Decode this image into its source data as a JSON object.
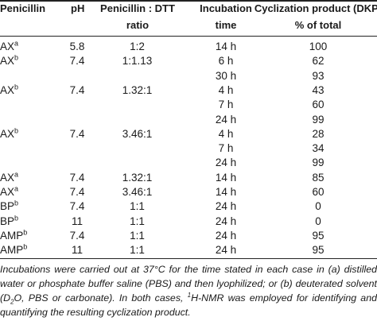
{
  "headers": {
    "penicillin": "Penicillin",
    "ph": "pH",
    "ratio_l1": "Penicillin : DTT",
    "ratio_l2": "ratio",
    "time_l1": "Incubation",
    "time_l2": "time",
    "dkp_l1": "Cyclization product (DKP)",
    "dkp_l2": "% of total"
  },
  "rows": [
    {
      "penicillin": "AX",
      "sup": "a",
      "ph": "5.8",
      "ratio": "1:2",
      "time": "14 h",
      "dkp": "100"
    },
    {
      "penicillin": "AX",
      "sup": "b",
      "ph": "7.4",
      "ratio": "1:1.13",
      "time": "6 h",
      "dkp": "62"
    },
    {
      "penicillin": "",
      "sup": "",
      "ph": "",
      "ratio": "",
      "time": "30 h",
      "dkp": "93"
    },
    {
      "penicillin": "AX",
      "sup": "b",
      "ph": "7.4",
      "ratio": "1.32:1",
      "time": "4 h",
      "dkp": "43"
    },
    {
      "penicillin": "",
      "sup": "",
      "ph": "",
      "ratio": "",
      "time": "7 h",
      "dkp": "60"
    },
    {
      "penicillin": "",
      "sup": "",
      "ph": "",
      "ratio": "",
      "time": "24 h",
      "dkp": "99"
    },
    {
      "penicillin": "AX",
      "sup": "b",
      "ph": "7.4",
      "ratio": "3.46:1",
      "time": "4 h",
      "dkp": "28"
    },
    {
      "penicillin": "",
      "sup": "",
      "ph": "",
      "ratio": "",
      "time": "7 h",
      "dkp": "34"
    },
    {
      "penicillin": "",
      "sup": "",
      "ph": "",
      "ratio": "",
      "time": "24 h",
      "dkp": "99"
    },
    {
      "penicillin": "AX",
      "sup": "a",
      "ph": "7.4",
      "ratio": "1.32:1",
      "time": "14 h",
      "dkp": "85"
    },
    {
      "penicillin": "AX",
      "sup": "a",
      "ph": "7.4",
      "ratio": "3.46:1",
      "time": "14 h",
      "dkp": "60"
    },
    {
      "penicillin": "BP",
      "sup": "b",
      "ph": "7.4",
      "ratio": "1:1",
      "time": "24 h",
      "dkp": "0"
    },
    {
      "penicillin": "BP",
      "sup": "b",
      "ph": "11",
      "ratio": "1:1",
      "time": "24 h",
      "dkp": "0"
    },
    {
      "penicillin": "AMP",
      "sup": "b",
      "ph": "7.4",
      "ratio": "1:1",
      "time": "24 h",
      "dkp": "95"
    },
    {
      "penicillin": "AMP",
      "sup": "b",
      "ph": "11",
      "ratio": "1:1",
      "time": "24 h",
      "dkp": "95"
    }
  ],
  "footnote": {
    "t1": "Incubations were carried out at 37°C for the time stated in each case in (a) distilled water or phosphate buffer saline (PBS) and then lyophilized; or (b) deuterated solvent (D",
    "sub1": "2",
    "t2": "O, PBS or carbonate). In both cases, ",
    "sup1": "1",
    "t3": "H-NMR was employed for identifying and quantifying the resulting cyclization product."
  }
}
